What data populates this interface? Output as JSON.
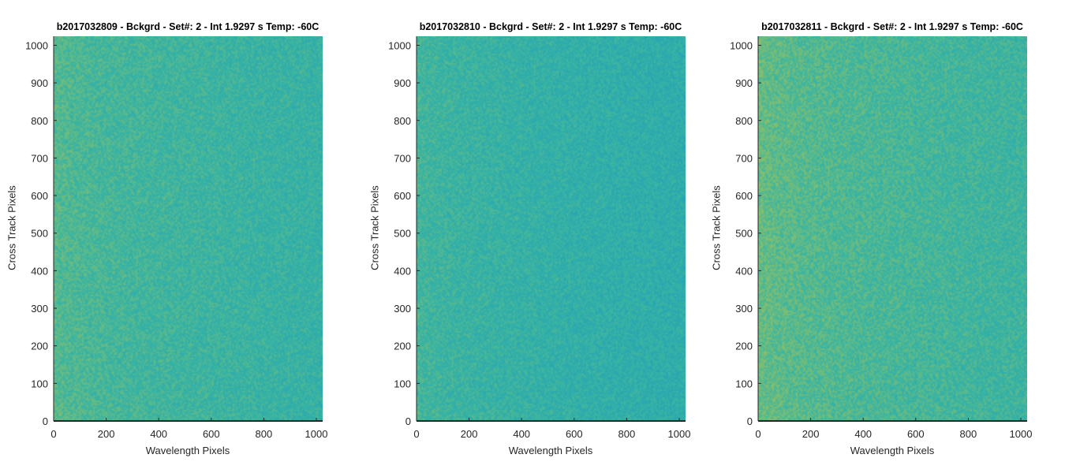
{
  "chart_data": [
    {
      "type": "heatmap",
      "title": "b2017032809 - Bckgrd - Set#: 2 - Int 1.9297 s Temp: -60C",
      "xlabel": "Wavelength Pixels",
      "ylabel": "Cross Track Pixels",
      "xlim": [
        0,
        1024
      ],
      "ylim": [
        0,
        1024
      ],
      "xticks": [
        0,
        200,
        400,
        600,
        800,
        1000
      ],
      "yticks": [
        0,
        100,
        200,
        300,
        400,
        500,
        600,
        700,
        800,
        900,
        1000
      ],
      "colormap": "parula",
      "colors": {
        "high": "#9fc25c",
        "mid": "#3ab5a2",
        "low": "#1f9fba"
      },
      "left_intensity": 0.65,
      "right_intensity": 0.42
    },
    {
      "type": "heatmap",
      "title": "b2017032810 - Bckgrd - Set#: 2 - Int 1.9297 s Temp: -60C",
      "xlabel": "Wavelength Pixels",
      "ylabel": "Cross Track Pixels",
      "xlim": [
        0,
        1024
      ],
      "ylim": [
        0,
        1024
      ],
      "xticks": [
        0,
        200,
        400,
        600,
        800,
        1000
      ],
      "yticks": [
        0,
        100,
        200,
        300,
        400,
        500,
        600,
        700,
        800,
        900,
        1000
      ],
      "colormap": "parula",
      "colors": {
        "high": "#9fc25c",
        "mid": "#3ab5a2",
        "low": "#1f9fba"
      },
      "left_intensity": 0.55,
      "right_intensity": 0.32
    },
    {
      "type": "heatmap",
      "title": "b2017032811 - Bckgrd - Set#: 2 - Int 1.9297 s Temp: -60C",
      "xlabel": "Wavelength Pixels",
      "ylabel": "Cross Track Pixels",
      "xlim": [
        0,
        1024
      ],
      "ylim": [
        0,
        1024
      ],
      "xticks": [
        0,
        200,
        400,
        600,
        800,
        1000
      ],
      "yticks": [
        0,
        100,
        200,
        300,
        400,
        500,
        600,
        700,
        800,
        900,
        1000
      ],
      "colormap": "parula",
      "colors": {
        "high": "#9fc25c",
        "mid": "#3ab5a2",
        "low": "#1f9fba"
      },
      "left_intensity": 0.75,
      "right_intensity": 0.48
    }
  ]
}
